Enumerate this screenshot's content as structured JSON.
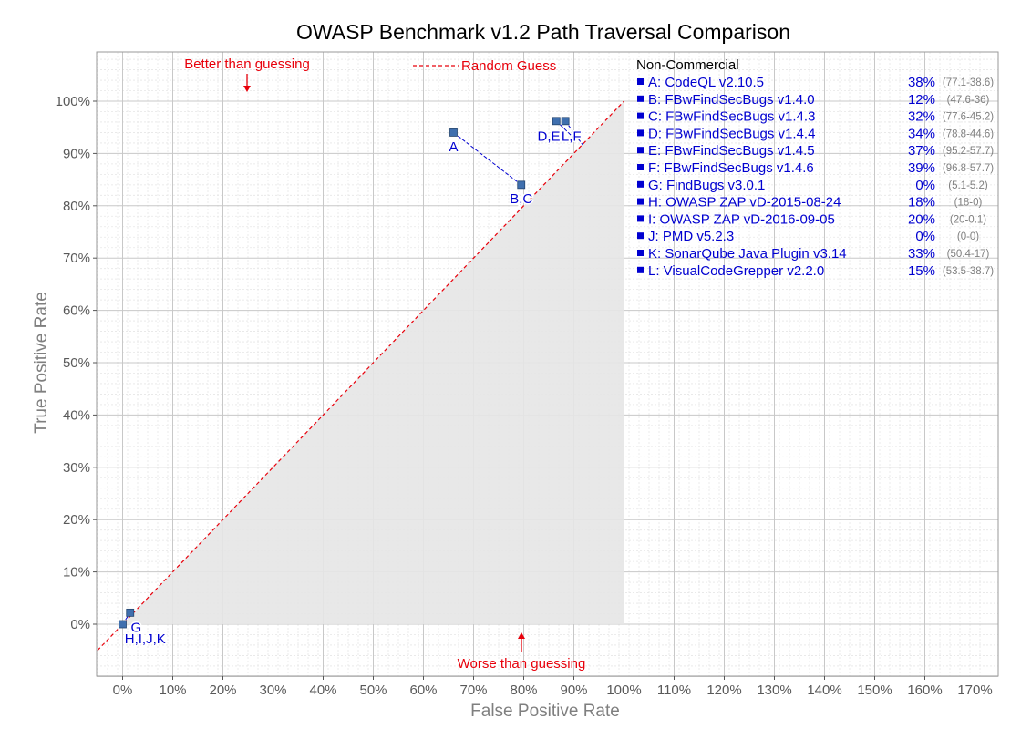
{
  "chart_data": {
    "type": "scatter",
    "title": "OWASP Benchmark v1.2 Path Traversal Comparison",
    "xlabel": "False Positive Rate",
    "ylabel": "True Positive Rate",
    "xlim": [
      -5,
      172
    ],
    "ylim": [
      -10,
      110
    ],
    "x_ticks": [
      0,
      10,
      20,
      30,
      40,
      50,
      60,
      70,
      80,
      90,
      100,
      110,
      120,
      130,
      140,
      150,
      160,
      170
    ],
    "x_tick_labels": [
      "0%",
      "10%",
      "20%",
      "30%",
      "40%",
      "50%",
      "60%",
      "70%",
      "80%",
      "90%",
      "100%",
      "110%",
      "120%",
      "130%",
      "140%",
      "150%",
      "160%",
      "170%"
    ],
    "y_ticks": [
      0,
      10,
      20,
      30,
      40,
      50,
      60,
      70,
      80,
      90,
      100
    ],
    "y_tick_labels": [
      "0%",
      "10%",
      "20%",
      "30%",
      "40%",
      "50%",
      "60%",
      "70%",
      "80%",
      "90%",
      "100%"
    ],
    "grid": true,
    "random_guess_label": "Random Guess",
    "annotations": {
      "better": "Better than guessing",
      "worse": "Worse than guessing"
    },
    "points": [
      {
        "label": "A",
        "x": 66,
        "y": 94
      },
      {
        "label": "B,C",
        "x": 79.5,
        "y": 84
      },
      {
        "label": "D,E",
        "x": 86.5,
        "y": 96.2
      },
      {
        "label": "L,F",
        "x": 88.3,
        "y": 96.2
      },
      {
        "label": "G",
        "x": 1.5,
        "y": 2.2
      },
      {
        "label": "H,I,J,K",
        "x": 0,
        "y": 0
      }
    ],
    "point_labels": [
      {
        "text": "A",
        "x": 66,
        "y": 91.5
      },
      {
        "text": "B,C",
        "x": 79.5,
        "y": 81.5
      },
      {
        "text": "D,E",
        "x": 85,
        "y": 93.5
      },
      {
        "text": "L,F",
        "x": 89.5,
        "y": 93.5
      },
      {
        "text": "G",
        "x": 2.7,
        "y": -0.4
      },
      {
        "text": "H,I,J,K",
        "x": 4.5,
        "y": -2.6
      }
    ],
    "connectors": [
      {
        "from": [
          66,
          94
        ],
        "to": [
          79.5,
          84
        ]
      },
      {
        "from": [
          86.5,
          96.2
        ],
        "to": [
          90.5,
          92.5
        ]
      },
      {
        "from": [
          88.3,
          96.2
        ],
        "to": [
          91.8,
          91.6
        ]
      },
      {
        "from": [
          0,
          0
        ],
        "to": [
          1.5,
          2.2
        ]
      }
    ],
    "legend": {
      "heading": "Non-Commercial",
      "items": [
        {
          "name": "A: CodeQL v2.10.5",
          "score": "38%",
          "range": "(77.1-38.6)"
        },
        {
          "name": "B: FBwFindSecBugs v1.4.0",
          "score": "12%",
          "range": "(47.6-36)"
        },
        {
          "name": "C: FBwFindSecBugs v1.4.3",
          "score": "32%",
          "range": "(77.6-45.2)"
        },
        {
          "name": "D: FBwFindSecBugs v1.4.4",
          "score": "34%",
          "range": "(78.8-44.6)"
        },
        {
          "name": "E: FBwFindSecBugs v1.4.5",
          "score": "37%",
          "range": "(95.2-57.7)"
        },
        {
          "name": "F: FBwFindSecBugs v1.4.6",
          "score": "39%",
          "range": "(96.8-57.7)"
        },
        {
          "name": "G: FindBugs v3.0.1",
          "score": "0%",
          "range": "(5.1-5.2)"
        },
        {
          "name": "H: OWASP ZAP vD-2015-08-24",
          "score": "18%",
          "range": "(18-0)"
        },
        {
          "name": "I:   OWASP ZAP vD-2016-09-05",
          "score": "20%",
          "range": "(20-0.1)"
        },
        {
          "name": "J:  PMD v5.2.3",
          "score": "0%",
          "range": "(0-0)"
        },
        {
          "name": "K: SonarQube Java Plugin v3.14",
          "score": "33%",
          "range": "(50.4-17)"
        },
        {
          "name": "L: VisualCodeGrepper v2.2.0",
          "score": "15%",
          "range": "(53.5-38.7)"
        }
      ]
    },
    "colors": {
      "point_fill": "#3f6fae",
      "point_label": "#0000d0",
      "connector": "#0000d0",
      "random_line": "#e8000b",
      "worse_area": "#e6e6e6",
      "annotation": "#e8000b",
      "major_grid": "#c8c8c8",
      "minor_grid": "#e6e6e6"
    }
  }
}
